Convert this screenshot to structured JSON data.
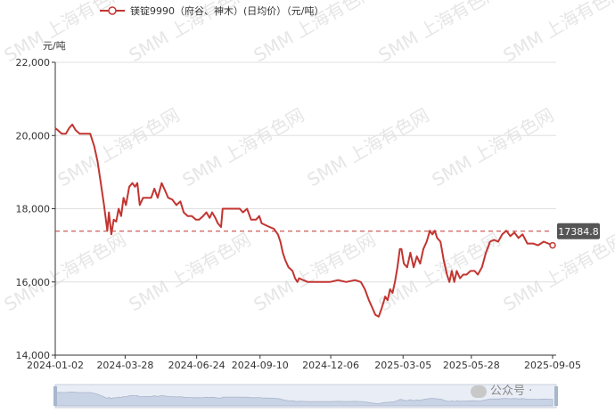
{
  "chart_data": {
    "type": "line",
    "legend": {
      "label": "镁锭9990（府谷、神木）(日均价）（元/吨）",
      "placement": "top-left"
    },
    "yunit": "元/吨",
    "ylim": [
      14000,
      22000
    ],
    "yticks": [
      "14,000",
      "16,000",
      "18,000",
      "20,000",
      "22,000"
    ],
    "xticks": [
      "2024-01-02",
      "2024-03-28",
      "2024-06-24",
      "2024-09-10",
      "2024-12-06",
      "2025-03-05",
      "2025-05-28",
      "2025-09-05"
    ],
    "xlim": [
      "2024-01-02",
      "2025-09-05"
    ],
    "grid": true,
    "markline": {
      "value": 17384.8,
      "label": "17384.8"
    },
    "series": [
      {
        "color": "#c23531",
        "points": [
          [
            "2024-01-02",
            20200
          ],
          [
            "2024-01-05",
            20150
          ],
          [
            "2024-01-10",
            20050
          ],
          [
            "2024-01-15",
            20050
          ],
          [
            "2024-01-19",
            20200
          ],
          [
            "2024-01-23",
            20300
          ],
          [
            "2024-01-27",
            20150
          ],
          [
            "2024-02-01",
            20050
          ],
          [
            "2024-02-08",
            20050
          ],
          [
            "2024-02-14",
            20050
          ],
          [
            "2024-02-19",
            19700
          ],
          [
            "2024-02-23",
            19300
          ],
          [
            "2024-02-27",
            18700
          ],
          [
            "2024-03-02",
            18100
          ],
          [
            "2024-03-06",
            17400
          ],
          [
            "2024-03-08",
            17900
          ],
          [
            "2024-03-11",
            17300
          ],
          [
            "2024-03-14",
            17700
          ],
          [
            "2024-03-17",
            17650
          ],
          [
            "2024-03-20",
            18000
          ],
          [
            "2024-03-23",
            17800
          ],
          [
            "2024-03-26",
            18300
          ],
          [
            "2024-03-29",
            18100
          ],
          [
            "2024-04-02",
            18600
          ],
          [
            "2024-04-06",
            18700
          ],
          [
            "2024-04-09",
            18600
          ],
          [
            "2024-04-12",
            18700
          ],
          [
            "2024-04-15",
            18100
          ],
          [
            "2024-04-19",
            18300
          ],
          [
            "2024-04-24",
            18300
          ],
          [
            "2024-04-29",
            18300
          ],
          [
            "2024-05-03",
            18550
          ],
          [
            "2024-05-07",
            18300
          ],
          [
            "2024-05-12",
            18700
          ],
          [
            "2024-05-16",
            18500
          ],
          [
            "2024-05-20",
            18300
          ],
          [
            "2024-05-25",
            18250
          ],
          [
            "2024-05-30",
            18100
          ],
          [
            "2024-06-04",
            18200
          ],
          [
            "2024-06-08",
            17900
          ],
          [
            "2024-06-13",
            17800
          ],
          [
            "2024-06-18",
            17800
          ],
          [
            "2024-06-23",
            17700
          ],
          [
            "2024-06-27",
            17700
          ],
          [
            "2024-07-02",
            17800
          ],
          [
            "2024-07-06",
            17900
          ],
          [
            "2024-07-10",
            17750
          ],
          [
            "2024-07-13",
            17900
          ],
          [
            "2024-07-17",
            17750
          ],
          [
            "2024-07-20",
            17600
          ],
          [
            "2024-07-24",
            17500
          ],
          [
            "2024-07-26",
            18000
          ],
          [
            "2024-08-05",
            18000
          ],
          [
            "2024-08-16",
            18000
          ],
          [
            "2024-08-20",
            17900
          ],
          [
            "2024-08-25",
            18000
          ],
          [
            "2024-08-30",
            17700
          ],
          [
            "2024-09-05",
            17700
          ],
          [
            "2024-09-09",
            17800
          ],
          [
            "2024-09-12",
            17600
          ],
          [
            "2024-09-17",
            17550
          ],
          [
            "2024-09-22",
            17500
          ],
          [
            "2024-09-27",
            17450
          ],
          [
            "2024-10-02",
            17300
          ],
          [
            "2024-10-05",
            17100
          ],
          [
            "2024-10-08",
            16800
          ],
          [
            "2024-10-11",
            16600
          ],
          [
            "2024-10-15",
            16400
          ],
          [
            "2024-10-20",
            16300
          ],
          [
            "2024-10-23",
            16100
          ],
          [
            "2024-10-26",
            16000
          ],
          [
            "2024-10-28",
            16100
          ],
          [
            "2024-11-02",
            16050
          ],
          [
            "2024-11-08",
            16000
          ],
          [
            "2024-11-15",
            16000
          ],
          [
            "2024-11-25",
            16000
          ],
          [
            "2024-12-05",
            16000
          ],
          [
            "2024-12-15",
            16050
          ],
          [
            "2024-12-25",
            16000
          ],
          [
            "2025-01-05",
            16050
          ],
          [
            "2025-01-12",
            16000
          ],
          [
            "2025-01-17",
            15800
          ],
          [
            "2025-01-22",
            15500
          ],
          [
            "2025-01-26",
            15300
          ],
          [
            "2025-01-30",
            15100
          ],
          [
            "2025-02-03",
            15050
          ],
          [
            "2025-02-07",
            15300
          ],
          [
            "2025-02-11",
            15600
          ],
          [
            "2025-02-14",
            15500
          ],
          [
            "2025-02-17",
            15800
          ],
          [
            "2025-02-20",
            15700
          ],
          [
            "2025-02-23",
            16000
          ],
          [
            "2025-02-26",
            16400
          ],
          [
            "2025-03-01",
            16900
          ],
          [
            "2025-03-03",
            16900
          ],
          [
            "2025-03-06",
            16500
          ],
          [
            "2025-03-10",
            16400
          ],
          [
            "2025-03-14",
            16800
          ],
          [
            "2025-03-18",
            16400
          ],
          [
            "2025-03-22",
            16700
          ],
          [
            "2025-03-26",
            16500
          ],
          [
            "2025-03-30",
            16900
          ],
          [
            "2025-04-03",
            17100
          ],
          [
            "2025-04-07",
            17400
          ],
          [
            "2025-04-10",
            17300
          ],
          [
            "2025-04-13",
            17400
          ],
          [
            "2025-04-16",
            17200
          ],
          [
            "2025-04-20",
            17100
          ],
          [
            "2025-04-24",
            16600
          ],
          [
            "2025-04-28",
            16200
          ],
          [
            "2025-05-01",
            16000
          ],
          [
            "2025-05-04",
            16300
          ],
          [
            "2025-05-07",
            16000
          ],
          [
            "2025-05-10",
            16300
          ],
          [
            "2025-05-14",
            16100
          ],
          [
            "2025-05-18",
            16200
          ],
          [
            "2025-05-22",
            16200
          ],
          [
            "2025-05-27",
            16300
          ],
          [
            "2025-06-01",
            16300
          ],
          [
            "2025-06-05",
            16200
          ],
          [
            "2025-06-10",
            16400
          ],
          [
            "2025-06-15",
            16800
          ],
          [
            "2025-06-20",
            17100
          ],
          [
            "2025-06-25",
            17150
          ],
          [
            "2025-06-30",
            17100
          ],
          [
            "2025-07-05",
            17300
          ],
          [
            "2025-07-10",
            17400
          ],
          [
            "2025-07-15",
            17250
          ],
          [
            "2025-07-20",
            17350
          ],
          [
            "2025-07-25",
            17200
          ],
          [
            "2025-07-30",
            17300
          ],
          [
            "2025-08-05",
            17050
          ],
          [
            "2025-08-12",
            17050
          ],
          [
            "2025-08-18",
            17000
          ],
          [
            "2025-08-25",
            17100
          ],
          [
            "2025-09-05",
            17000
          ]
        ]
      }
    ]
  },
  "watermark": "SMM 上海有色网",
  "wechat_label": "公众号 ·"
}
